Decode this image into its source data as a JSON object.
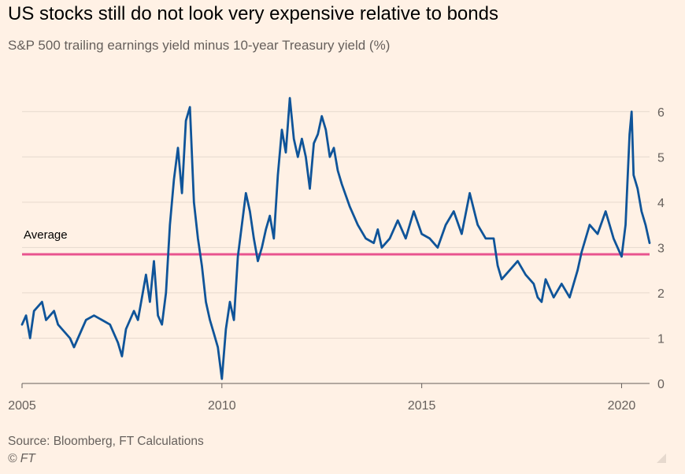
{
  "header": {
    "title": "US stocks still do not look very expensive relative to bonds",
    "subtitle": "S&P 500 trailing earnings yield minus 10-year Treasury yield (%)"
  },
  "footer": {
    "source": "Source: Bloomberg, FT Calculations",
    "copyright": "© FT"
  },
  "colors": {
    "background": "#FFF1E5",
    "series": "#0F5499",
    "average": "#E8548E",
    "grid": "#E6D9CE",
    "text": "#66605C"
  },
  "chart_data": {
    "type": "line",
    "title": "US stocks still do not look very expensive relative to bonds",
    "subtitle": "S&P 500 trailing earnings yield minus 10-year Treasury yield (%)",
    "xlabel": "",
    "ylabel": "",
    "xlim": [
      2005,
      2020.7
    ],
    "ylim": [
      0,
      6.5
    ],
    "x_ticks": [
      2005,
      2010,
      2015,
      2020
    ],
    "y_ticks": [
      0,
      1,
      2,
      3,
      4,
      5,
      6
    ],
    "y_axis_side": "right",
    "grid": "horizontal",
    "average": {
      "label": "Average",
      "value": 2.85
    },
    "series": [
      {
        "name": "",
        "x": [
          2005.0,
          2005.1,
          2005.2,
          2005.3,
          2005.4,
          2005.5,
          2005.6,
          2005.8,
          2005.9,
          2006.0,
          2006.2,
          2006.3,
          2006.5,
          2006.6,
          2006.8,
          2007.0,
          2007.2,
          2007.4,
          2007.5,
          2007.6,
          2007.8,
          2007.9,
          2008.0,
          2008.1,
          2008.2,
          2008.3,
          2008.4,
          2008.5,
          2008.6,
          2008.7,
          2008.8,
          2008.9,
          2009.0,
          2009.1,
          2009.2,
          2009.3,
          2009.4,
          2009.5,
          2009.6,
          2009.7,
          2009.8,
          2009.9,
          2010.0,
          2010.1,
          2010.2,
          2010.3,
          2010.4,
          2010.5,
          2010.6,
          2010.7,
          2010.8,
          2010.9,
          2011.0,
          2011.1,
          2011.2,
          2011.3,
          2011.4,
          2011.5,
          2011.6,
          2011.7,
          2011.8,
          2011.9,
          2012.0,
          2012.1,
          2012.2,
          2012.3,
          2012.4,
          2012.5,
          2012.6,
          2012.7,
          2012.8,
          2012.9,
          2013.0,
          2013.2,
          2013.4,
          2013.6,
          2013.8,
          2013.9,
          2014.0,
          2014.2,
          2014.4,
          2014.6,
          2014.8,
          2015.0,
          2015.2,
          2015.4,
          2015.6,
          2015.8,
          2016.0,
          2016.2,
          2016.4,
          2016.6,
          2016.8,
          2016.9,
          2017.0,
          2017.2,
          2017.4,
          2017.6,
          2017.8,
          2017.9,
          2018.0,
          2018.1,
          2018.3,
          2018.5,
          2018.7,
          2018.9,
          2019.0,
          2019.2,
          2019.4,
          2019.6,
          2019.8,
          2019.9,
          2020.0,
          2020.1,
          2020.2,
          2020.25,
          2020.3,
          2020.4,
          2020.5,
          2020.6,
          2020.7
        ],
        "values": [
          1.3,
          1.5,
          1.0,
          1.6,
          1.7,
          1.8,
          1.4,
          1.6,
          1.3,
          1.2,
          1.0,
          0.8,
          1.2,
          1.4,
          1.5,
          1.4,
          1.3,
          0.9,
          0.6,
          1.2,
          1.6,
          1.4,
          1.9,
          2.4,
          1.8,
          2.7,
          1.5,
          1.3,
          2.0,
          3.5,
          4.5,
          5.2,
          4.2,
          5.8,
          6.1,
          4.0,
          3.2,
          2.6,
          1.8,
          1.4,
          1.1,
          0.8,
          0.1,
          1.2,
          1.8,
          1.4,
          2.8,
          3.5,
          4.2,
          3.8,
          3.2,
          2.7,
          3.0,
          3.4,
          3.7,
          3.2,
          4.6,
          5.6,
          5.1,
          6.3,
          5.4,
          5.0,
          5.4,
          5.0,
          4.3,
          5.3,
          5.5,
          5.9,
          5.6,
          5.0,
          5.2,
          4.7,
          4.4,
          3.9,
          3.5,
          3.2,
          3.1,
          3.4,
          3.0,
          3.2,
          3.6,
          3.2,
          3.8,
          3.3,
          3.2,
          3.0,
          3.5,
          3.8,
          3.3,
          4.2,
          3.5,
          3.2,
          3.2,
          2.6,
          2.3,
          2.5,
          2.7,
          2.4,
          2.2,
          1.9,
          1.8,
          2.3,
          1.9,
          2.2,
          1.9,
          2.5,
          2.9,
          3.5,
          3.3,
          3.8,
          3.2,
          3.0,
          2.8,
          3.5,
          5.5,
          6.0,
          4.6,
          4.3,
          3.8,
          3.5,
          3.1
        ]
      }
    ]
  }
}
